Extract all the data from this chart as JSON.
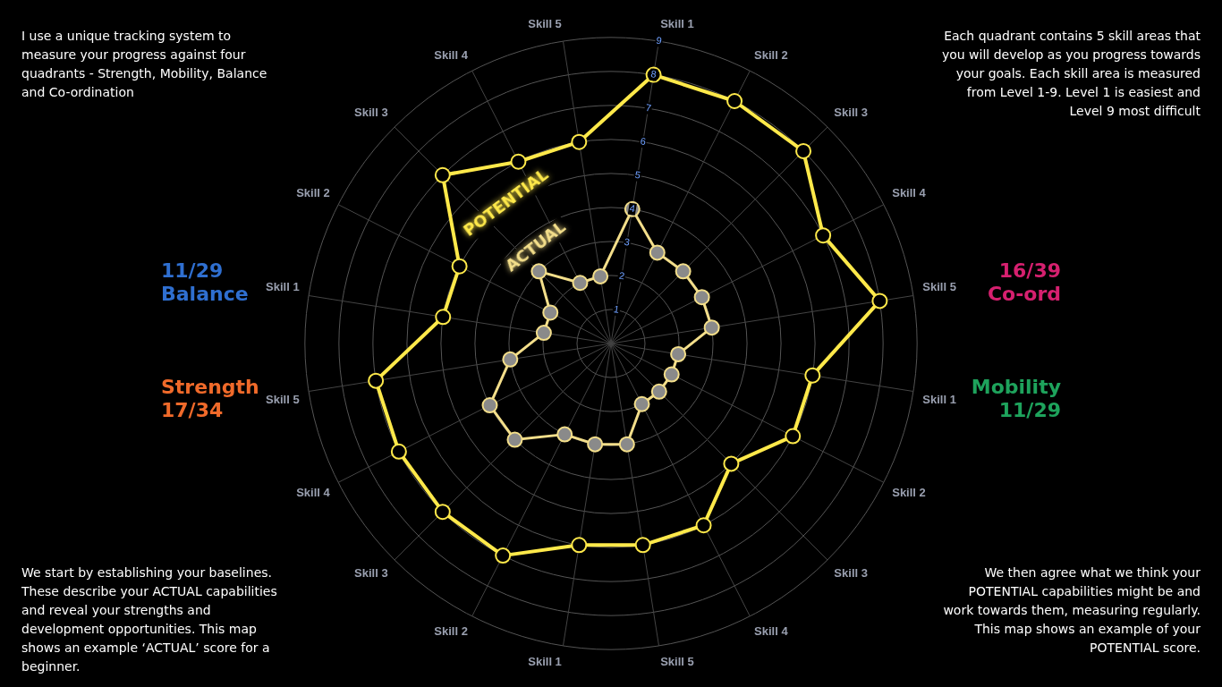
{
  "chart_data": {
    "type": "radar",
    "categories": [
      "Skill 1",
      "Skill 2",
      "Skill 3",
      "Skill 4",
      "Skill 5",
      "Skill 1",
      "Skill 2",
      "Skill 3",
      "Skill 4",
      "Skill 5",
      "Skill 1",
      "Skill 2",
      "Skill 3",
      "Skill 4",
      "Skill 5",
      "Skill 1",
      "Skill 2",
      "Skill 3",
      "Skill 4",
      "Skill 5"
    ],
    "series": [
      {
        "name": "POTENTIAL",
        "color": "#ffe94a",
        "values": [
          8,
          8,
          8,
          7,
          8,
          6,
          6,
          5,
          6,
          6,
          6,
          7,
          7,
          7,
          7,
          5,
          5,
          7,
          6,
          6
        ]
      },
      {
        "name": "ACTUAL",
        "color": "#f3de8a",
        "values": [
          4,
          3,
          3,
          3,
          3,
          2,
          2,
          2,
          2,
          3,
          3,
          3,
          4,
          4,
          3,
          2,
          2,
          3,
          2,
          2
        ]
      }
    ],
    "ylim": [
      0,
      9
    ],
    "yticks": [
      1,
      2,
      3,
      4,
      5,
      6,
      7,
      8,
      9
    ],
    "grid": true,
    "legend": false,
    "marker": "circle",
    "line_style": "solid",
    "annotations": [
      "I use a unique tracking system to measure your progress against four quadrants - Strength, Mobility, Balance and Co-ordination",
      "Each quadrant contains 5 skill areas that you will develop as you progress towards your goals. Each skill area is measured from Level 1-9. Level 1 is easiest and Level 9 most difficult",
      "We start by establishing your baselines. These describe your ACTUAL capabilities and reveal your strengths and development opportunities. This map shows an example ‘ACTUAL’ score for a beginner.",
      "We then agree what we think your POTENTIAL capabilities might be and work towards them, measuring regularly. This map shows an example of your POTENTIAL score.",
      "11/29\nBalance",
      "16/39\nCo-ord",
      "Strength\n17/34",
      "Mobility\n11/29"
    ]
  }
}
